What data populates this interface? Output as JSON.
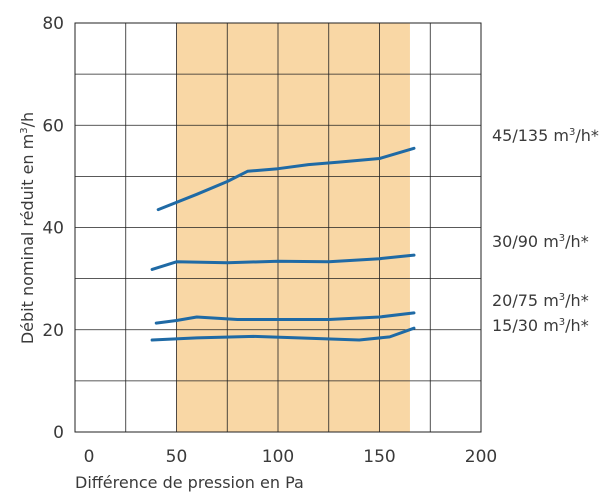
{
  "chart_data": {
    "type": "line",
    "title": "",
    "xlabel": "Différence de pression en Pa",
    "ylabel": {
      "prefix": "Débit nominal réduit en m",
      "sup": "3",
      "suffix": "/h"
    },
    "xlim": [
      0,
      200
    ],
    "ylim": [
      0,
      80
    ],
    "x_ticks": [
      "0",
      "50",
      "100",
      "150",
      "200"
    ],
    "y_ticks": [
      "0",
      "20",
      "40",
      "60",
      "80"
    ],
    "grid": true,
    "highlight_band": {
      "x": [
        50,
        165
      ],
      "color": "#f9d7a5"
    },
    "line_color": "#1f6aa5",
    "series": [
      {
        "name": {
          "prefix": "45/135 m",
          "sup": "3",
          "suffix": "/h*"
        },
        "points": [
          [
            41,
            43.5
          ],
          [
            60,
            46.5
          ],
          [
            75,
            49
          ],
          [
            85,
            51
          ],
          [
            100,
            51.5
          ],
          [
            115,
            52.3
          ],
          [
            130,
            52.8
          ],
          [
            150,
            53.5
          ],
          [
            167,
            55.5
          ]
        ]
      },
      {
        "name": {
          "prefix": "30/90 m",
          "sup": "3",
          "suffix": "/h*"
        },
        "points": [
          [
            38,
            31.8
          ],
          [
            50,
            33.3
          ],
          [
            75,
            33.1
          ],
          [
            100,
            33.4
          ],
          [
            125,
            33.3
          ],
          [
            150,
            33.9
          ],
          [
            167,
            34.6
          ]
        ]
      },
      {
        "name": {
          "prefix": "20/75 m",
          "sup": "3",
          "suffix": "/h*"
        },
        "points": [
          [
            40,
            21.3
          ],
          [
            50,
            21.8
          ],
          [
            60,
            22.5
          ],
          [
            80,
            22.0
          ],
          [
            100,
            22.0
          ],
          [
            125,
            22.0
          ],
          [
            150,
            22.5
          ],
          [
            167,
            23.3
          ]
        ]
      },
      {
        "name": {
          "prefix": "15/30 m",
          "sup": "3",
          "suffix": "/h*"
        },
        "points": [
          [
            38,
            18.0
          ],
          [
            60,
            18.4
          ],
          [
            88,
            18.7
          ],
          [
            110,
            18.4
          ],
          [
            140,
            18.0
          ],
          [
            155,
            18.6
          ],
          [
            167,
            20.3
          ]
        ]
      }
    ]
  }
}
